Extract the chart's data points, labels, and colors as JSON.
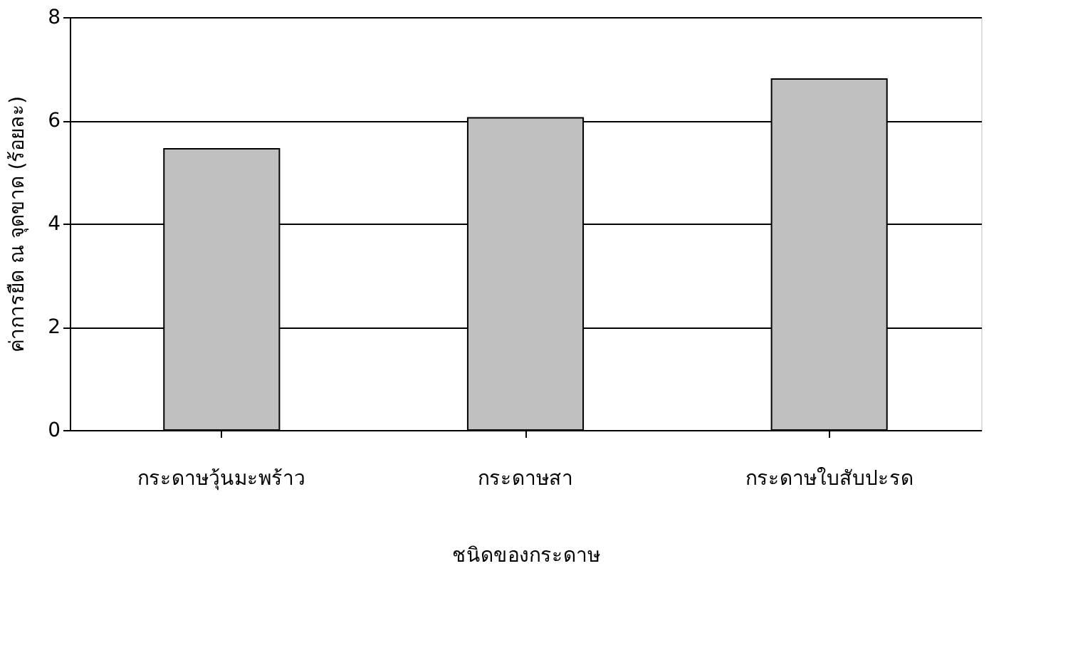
{
  "chart_data": {
    "type": "bar",
    "xlabel": "ชนิดของกระดาษ",
    "ylabel": "ค่าการยืด ณ จุดขาด (ร้อยละ)",
    "categories": [
      "กระดาษวุ้นมะพร้าว",
      "กระดาษสา",
      "กระดาษใบสับปะรด"
    ],
    "values": [
      5.45,
      6.05,
      6.8
    ],
    "color": "#c0c0c0",
    "ylim": [
      0,
      8
    ],
    "yticks": [
      0,
      2,
      4,
      6,
      8
    ],
    "grid": "y"
  }
}
